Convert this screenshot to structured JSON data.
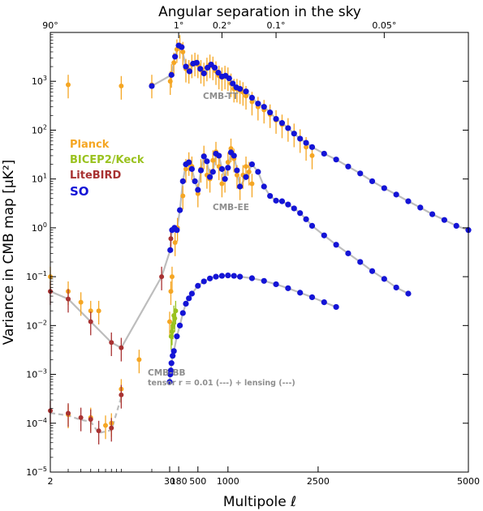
{
  "chart_data": {
    "type": "scatter",
    "title": "",
    "top_axis_title": "Angular separation in the sky",
    "top_ticks": [
      "90°",
      "1°",
      "0.2°",
      "0.1°",
      "0.05°"
    ],
    "xlabel": "Multipole ℓ",
    "ylabel": "Variance in CMB map [μK²]",
    "x_ticks": [
      "2",
      "30",
      "180",
      "500",
      "1000",
      "2500",
      "5000"
    ],
    "y_ticks": [
      "10^3",
      "10^2",
      "10^1",
      "10^0",
      "10^-1",
      "10^-2",
      "10^-3",
      "10^-4",
      "10^-5"
    ],
    "xlim": [
      2,
      5000
    ],
    "ylim": [
      1e-05,
      10000.0
    ],
    "yscale": "log",
    "xscale": "piecewise log-linear",
    "grid": false,
    "legend_position": "left",
    "colors": {
      "Planck": "#f5a623",
      "BICEP2/Keck": "#9ac21f",
      "LiteBIRD": "#a83232",
      "SO": "#1414d6",
      "theory": "#bdbdbd"
    },
    "legend": [
      {
        "name": "Planck",
        "color": "#f5a623"
      },
      {
        "name": "BICEP2/Keck",
        "color": "#9ac21f"
      },
      {
        "name": "LiteBIRD",
        "color": "#a83232"
      },
      {
        "name": "SO",
        "color": "#1414d6"
      }
    ],
    "annotations": {
      "tt": "CMB-TT",
      "ee": "CMB-EE",
      "bb": "CMB-BB",
      "bb_note": "tensor r = 0.01 (---) + lensing (---)"
    },
    "series": [
      {
        "name": "Planck",
        "spectrum": "TT",
        "x": [
          3,
          10,
          20,
          40,
          60,
          100,
          150,
          200,
          250,
          300,
          350,
          400,
          450,
          500,
          550,
          600,
          650,
          700,
          750,
          800,
          850,
          900,
          950,
          1000,
          1050,
          1100,
          1150,
          1200,
          1250,
          1300,
          1400,
          1500,
          1600,
          1700,
          1800,
          1900,
          2000,
          2100,
          2200,
          2300,
          2400
        ],
        "y": [
          850,
          800,
          850,
          1000,
          1400,
          2400,
          4500,
          5500,
          4000,
          1800,
          1700,
          2200,
          2400,
          2200,
          1700,
          1500,
          1900,
          2200,
          2000,
          1600,
          1300,
          1200,
          1300,
          1200,
          900,
          700,
          700,
          650,
          600,
          500,
          380,
          300,
          260,
          210,
          160,
          130,
          110,
          85,
          65,
          45,
          30
        ]
      },
      {
        "name": "SO",
        "spectrum": "TT",
        "x": [
          20,
          60,
          120,
          180,
          230,
          300,
          360,
          420,
          480,
          540,
          600,
          660,
          720,
          780,
          840,
          900,
          960,
          1020,
          1080,
          1140,
          1200,
          1300,
          1400,
          1500,
          1600,
          1700,
          1800,
          1900,
          2000,
          2100,
          2200,
          2300,
          2400,
          2600,
          2800,
          3000,
          3200,
          3400,
          3600,
          3800,
          4000,
          4200,
          4400,
          4600,
          4800,
          5000
        ],
        "y": [
          800,
          1350,
          3200,
          5400,
          5000,
          2000,
          1600,
          2300,
          2400,
          1800,
          1450,
          1900,
          2200,
          1900,
          1500,
          1250,
          1300,
          1150,
          900,
          750,
          700,
          620,
          460,
          350,
          300,
          230,
          170,
          140,
          110,
          85,
          67,
          55,
          45,
          33,
          25,
          18,
          13,
          9,
          6.5,
          4.8,
          3.5,
          2.6,
          1.9,
          1.45,
          1.1,
          0.9
        ]
      },
      {
        "name": "Planck",
        "spectrum": "EE",
        "x": [
          2,
          3,
          4,
          5,
          6,
          30,
          50,
          70,
          120,
          160,
          250,
          300,
          350,
          400,
          500,
          550,
          600,
          650,
          700,
          750,
          800,
          850,
          900,
          950,
          1000,
          1050,
          1100,
          1150,
          1200,
          1250,
          1300,
          1350,
          1400
        ],
        "y": [
          0.1,
          0.05,
          0.03,
          0.02,
          0.02,
          0.012,
          0.05,
          0.1,
          0.5,
          1.0,
          4.5,
          16,
          22,
          18,
          5,
          16,
          30,
          12,
          10,
          24,
          36,
          18,
          8,
          10,
          22,
          42,
          26,
          12,
          7,
          12,
          18,
          14,
          8
        ]
      },
      {
        "name": "LiteBIRD",
        "spectrum": "EE",
        "x": [
          2,
          3,
          5,
          8,
          10,
          25,
          50
        ],
        "y": [
          0.05,
          0.035,
          0.012,
          0.0045,
          0.0035,
          0.1,
          0.6
        ]
      },
      {
        "name": "SO",
        "spectrum": "EE",
        "x": [
          40,
          70,
          110,
          150,
          200,
          250,
          300,
          350,
          400,
          450,
          500,
          550,
          600,
          650,
          700,
          750,
          800,
          850,
          900,
          950,
          1000,
          1050,
          1100,
          1150,
          1200,
          1300,
          1400,
          1500,
          1600,
          1700,
          1800,
          1900,
          2000,
          2100,
          2200,
          2300,
          2400,
          2600,
          2800,
          3000,
          3200,
          3400,
          3600,
          3800,
          4000
        ],
        "y": [
          0.35,
          0.9,
          1.0,
          0.9,
          2.3,
          9,
          20,
          22,
          16,
          9,
          6,
          15,
          29,
          23,
          11,
          14,
          33,
          30,
          16,
          10,
          17,
          35,
          30,
          15,
          7,
          11,
          20,
          14,
          7,
          4.5,
          3.6,
          3.5,
          3.0,
          2.5,
          2.0,
          1.5,
          1.1,
          0.7,
          0.45,
          0.3,
          0.2,
          0.13,
          0.09,
          0.06,
          0.045
        ]
      },
      {
        "name": "Planck",
        "spectrum": "BB",
        "x": [
          3,
          5,
          7,
          8,
          10,
          15
        ],
        "y": [
          0.00015,
          0.00013,
          9e-05,
          0.0001,
          0.0005,
          0.002
        ]
      },
      {
        "name": "LiteBIRD",
        "spectrum": "BB",
        "x": [
          2,
          3,
          4,
          5,
          6,
          8,
          10
        ],
        "y": [
          0.00018,
          0.00016,
          0.00013,
          0.00012,
          7e-05,
          8e-05,
          0.00038
        ]
      },
      {
        "name": "BICEP2/Keck",
        "spectrum": "BB",
        "x": [
          55,
          70,
          85,
          100,
          115,
          130
        ],
        "y": [
          0.006,
          0.0075,
          0.01,
          0.016,
          0.014,
          0.02
        ]
      },
      {
        "name": "SO",
        "spectrum": "BB",
        "x": [
          30,
          40,
          50,
          60,
          80,
          100,
          150,
          200,
          250,
          300,
          350,
          400,
          500,
          600,
          700,
          800,
          900,
          1000,
          1100,
          1200,
          1400,
          1600,
          1800,
          2000,
          2200,
          2400,
          2600,
          2800
        ],
        "y": [
          0.0007,
          0.001,
          0.0012,
          0.0017,
          0.0024,
          0.003,
          0.006,
          0.01,
          0.018,
          0.028,
          0.036,
          0.045,
          0.065,
          0.08,
          0.092,
          0.1,
          0.104,
          0.106,
          0.104,
          0.1,
          0.093,
          0.082,
          0.07,
          0.058,
          0.047,
          0.038,
          0.03,
          0.024
        ]
      }
    ]
  }
}
